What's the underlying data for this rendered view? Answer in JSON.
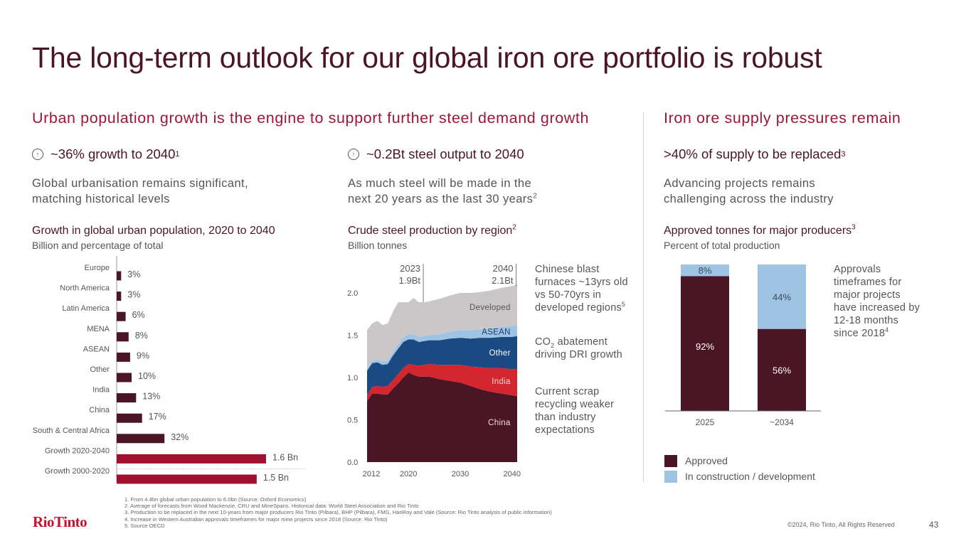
{
  "page": {
    "title": "The long-term outlook for our global iron ore portfolio is robust",
    "page_number": "43",
    "copyright": "©2024, Rio Tinto, All Rights Reserved",
    "logo": "RioTinto"
  },
  "colors": {
    "title": "#4a1524",
    "accent": "#a0163a",
    "maroon": "#4a1524",
    "crimson": "#a0112f",
    "red": "#d3262e",
    "navy": "#1b4a82",
    "light_blue": "#9ec3e3",
    "grey": "#cbc7c9"
  },
  "sections": {
    "demand": {
      "heading": "Urban population growth is the engine to support further steel demand growth"
    },
    "supply": {
      "heading": "Iron ore supply pressures remain"
    }
  },
  "columns": [
    {
      "kpi_icon": "arrow-up-circle-icon",
      "kpi": "~36% growth to 2040",
      "kpi_sup": "1",
      "desc_line1": "Global urbanisation remains significant,",
      "desc_line2": "matching historical levels",
      "desc_sup": "",
      "chart_title": "Growth in global urban population, 2020 to 2040",
      "chart_title_sup": "",
      "chart_sub": "Billion and percentage of total"
    },
    {
      "kpi_icon": "arrow-up-circle-icon",
      "kpi": "~0.2Bt steel output to 2040",
      "kpi_sup": "",
      "desc_line1": "As much steel will be made in the",
      "desc_line2": "next 20 years as the last 30 years",
      "desc_sup": "2",
      "chart_title": "Crude steel production by region",
      "chart_title_sup": "2",
      "chart_sub": "Billion tonnes"
    },
    {
      "kpi": ">40% of supply to be replaced",
      "kpi_sup": "3",
      "desc_line1": "Advancing projects remains",
      "desc_line2": "challenging across the industry",
      "desc_sup": "",
      "chart_title": "Approved tonnes for major producers",
      "chart_title_sup": "3",
      "chart_sub": "Percent of total production"
    }
  ],
  "steel_notes": [
    {
      "text": "Chinese blast furnaces ~13yrs old vs 50-70yrs in developed regions",
      "sup": "5"
    },
    {
      "text_pre": "CO",
      "sub": "2",
      "text": " abatement driving DRI growth"
    },
    {
      "text": "Current scrap recycling weaker than industry expectations"
    }
  ],
  "supply_note": {
    "text": "Approvals timeframes for major projects have increased by 12-18 months since 2018",
    "sup": "4"
  },
  "legend": [
    {
      "label": "Approved",
      "color": "#4a1524"
    },
    {
      "label": "In construction / development",
      "color": "#9ec3e3"
    }
  ],
  "footnotes": [
    "1. From 4.4bn global urban population to 6.0bn (Source: Oxford Economics)",
    "2. Average of forecasts from Wood Mackenzie, CRU and MineSpans. Historical data: World Steel Association and Rio Tinto",
    "3. Production to be replaced in the next 10-years from major producers Rio Tinto (Pilbara), BHP (Pilbara), FMG, HanRoy and Vale (Source: Rio Tinto analysis of public information)",
    "4. Increase in Western Australian approvals timeframes for major mine projects since 2018 (Source: Rio Tinto)",
    "5. Source OECD"
  ],
  "chart_data": [
    {
      "type": "bar",
      "orientation": "horizontal",
      "title": "Growth in global urban population, 2020 to 2040",
      "subtitle": "Billion and percentage of total",
      "categories": [
        "Europe",
        "North America",
        "Latin America",
        "MENA",
        "ASEAN",
        "Other",
        "India",
        "China",
        "South & Central Africa",
        "Growth 2020-2040",
        "Growth 2000-2020"
      ],
      "values": [
        3,
        3,
        6,
        8,
        9,
        10,
        13,
        17,
        32,
        1.6,
        1.5
      ],
      "units": [
        "%",
        "%",
        "%",
        "%",
        "%",
        "%",
        "%",
        "%",
        "%",
        "Bn",
        "Bn"
      ],
      "labels": [
        "3%",
        "3%",
        "6%",
        "8%",
        "9%",
        "10%",
        "13%",
        "17%",
        "32%",
        "1.6 Bn",
        "1.5 Bn"
      ],
      "bar_colors": [
        "#4a1524",
        "#4a1524",
        "#4a1524",
        "#4a1524",
        "#4a1524",
        "#4a1524",
        "#4a1524",
        "#4a1524",
        "#4a1524",
        "#a0112f",
        "#a0112f"
      ],
      "share_basis_bn": 1.6
    },
    {
      "type": "area",
      "stacked": true,
      "title": "Crude steel production by region",
      "ylabel": "Billion tonnes",
      "ylim": [
        0,
        2.0
      ],
      "yticks": [
        "0.0",
        "0.5",
        "1.0",
        "1.5",
        "2.0"
      ],
      "xticks": [
        "2012",
        "2020",
        "2030",
        "2040"
      ],
      "x": [
        2012,
        2013,
        2014,
        2015,
        2016,
        2017,
        2018,
        2019,
        2020,
        2021,
        2022,
        2023,
        2024,
        2026,
        2028,
        2030,
        2032,
        2034,
        2036,
        2038,
        2040,
        2041
      ],
      "series": [
        {
          "name": "China",
          "color": "#4a1524",
          "values": [
            0.72,
            0.81,
            0.81,
            0.8,
            0.8,
            0.87,
            0.93,
            1.0,
            1.06,
            1.03,
            1.01,
            1.01,
            1.01,
            0.98,
            0.96,
            0.94,
            0.9,
            0.86,
            0.83,
            0.81,
            0.79,
            0.78
          ]
        },
        {
          "name": "India",
          "color": "#d3262e",
          "values": [
            0.07,
            0.08,
            0.09,
            0.09,
            0.1,
            0.1,
            0.11,
            0.11,
            0.1,
            0.12,
            0.13,
            0.14,
            0.15,
            0.17,
            0.19,
            0.21,
            0.23,
            0.26,
            0.28,
            0.3,
            0.31,
            0.32
          ]
        },
        {
          "name": "Other",
          "color": "#1b4a82",
          "values": [
            0.29,
            0.28,
            0.28,
            0.26,
            0.26,
            0.29,
            0.3,
            0.31,
            0.29,
            0.3,
            0.28,
            0.28,
            0.28,
            0.29,
            0.31,
            0.32,
            0.33,
            0.35,
            0.36,
            0.37,
            0.38,
            0.39
          ]
        },
        {
          "name": "ASEAN",
          "color": "#9ec3e3",
          "values": [
            0.03,
            0.03,
            0.03,
            0.04,
            0.04,
            0.04,
            0.05,
            0.05,
            0.06,
            0.06,
            0.06,
            0.06,
            0.06,
            0.07,
            0.08,
            0.09,
            0.1,
            0.1,
            0.11,
            0.12,
            0.13,
            0.13
          ]
        },
        {
          "name": "Developed",
          "color": "#cbc7c9",
          "values": [
            0.45,
            0.44,
            0.46,
            0.43,
            0.44,
            0.48,
            0.5,
            0.42,
            0.38,
            0.43,
            0.41,
            0.4,
            0.4,
            0.42,
            0.43,
            0.44,
            0.44,
            0.44,
            0.45,
            0.46,
            0.47,
            0.48
          ]
        }
      ],
      "annotations": [
        {
          "year": 2023,
          "label_line1": "2023",
          "label_line2": "1.9Bt"
        },
        {
          "year": 2040,
          "label_line1": "2040",
          "label_line2": "2.1Bt"
        }
      ]
    },
    {
      "type": "bar",
      "stacked": true,
      "title": "Approved tonnes for major producers",
      "subtitle": "Percent of total production",
      "categories": [
        "2025",
        "~2034"
      ],
      "series": [
        {
          "name": "Approved",
          "color": "#4a1524",
          "values": [
            92,
            56
          ]
        },
        {
          "name": "In construction / development",
          "color": "#9ec3e3",
          "values": [
            8,
            44
          ]
        }
      ],
      "ylim": [
        0,
        100
      ],
      "legend": "bottom-left"
    }
  ]
}
